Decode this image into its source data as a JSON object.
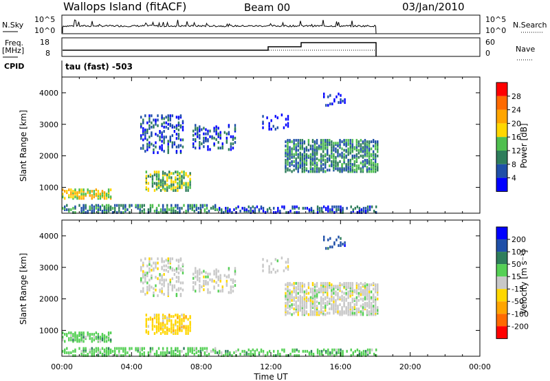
{
  "header": {
    "site": "Wallops Island (fitACF)",
    "beam": "Beam 00",
    "date": "03/Jan/2010"
  },
  "left_labels": {
    "nsky": "N.Sky",
    "freq_line1": "Freq.",
    "freq_line2": "[MHz]",
    "cpid": "CPID"
  },
  "right_labels": {
    "nsearch": "N.Search",
    "nave": "Nave"
  },
  "noise_panel": {
    "left_ticks": [
      "10^5",
      "10^0"
    ],
    "right_ticks": [
      "10^5",
      "10^0"
    ]
  },
  "freq_panel": {
    "left_ticks": [
      "18",
      "8"
    ],
    "right_ticks": [
      "60",
      "0"
    ]
  },
  "cpid_text": "tau (fast) -503",
  "colors": {
    "power": [
      "#0000ff",
      "#1f4fa8",
      "#2e7d5b",
      "#4fbf4f",
      "#ffd700",
      "#ffa500",
      "#ff6a00",
      "#ff0000"
    ],
    "velocity": [
      "#ff0000",
      "#ff6a00",
      "#ffa500",
      "#ffd700",
      "#c8c8c8",
      "#55d055",
      "#2e7d5b",
      "#1f4fa8",
      "#0000ff"
    ]
  },
  "chart_data": [
    {
      "type": "heatmap",
      "title": "",
      "xlabel": "Time UT",
      "ylabel": "Slant Range [km]",
      "x_ticks": [
        "00:00",
        "04:00",
        "08:00",
        "12:00",
        "16:00",
        "20:00",
        "00:00"
      ],
      "y_ticks": [
        "1000",
        "2000",
        "3000",
        "4000"
      ],
      "ylim": [
        180,
        4500
      ],
      "colorbar_label": "Power [dB]",
      "colorbar_ticks": [
        "4",
        "8",
        "12",
        "16",
        "20",
        "24",
        "28"
      ]
    },
    {
      "type": "heatmap",
      "title": "",
      "xlabel": "Time UT",
      "ylabel": "Slant Range [km]",
      "x_ticks": [
        "00:00",
        "04:00",
        "08:00",
        "12:00",
        "16:00",
        "20:00",
        "00:00"
      ],
      "y_ticks": [
        "1000",
        "2000",
        "3000",
        "4000"
      ],
      "ylim": [
        180,
        4500
      ],
      "colorbar_label": "Velocity [m s⁻¹]",
      "colorbar_ticks": [
        "200",
        "100",
        "50",
        "15",
        "-15",
        "-50",
        "-100",
        "-200"
      ]
    }
  ]
}
